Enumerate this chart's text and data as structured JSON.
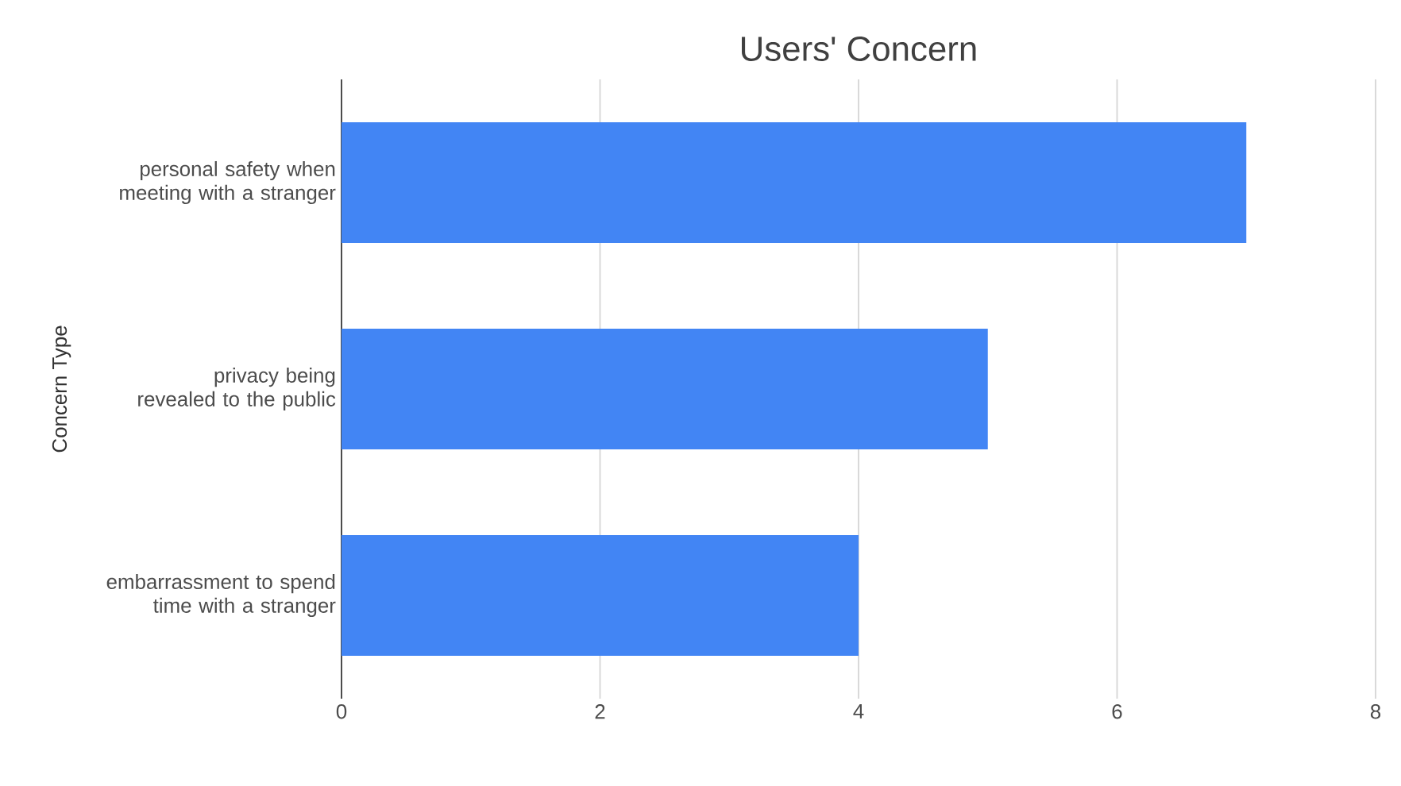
{
  "chart_data": {
    "type": "bar",
    "orientation": "horizontal",
    "title": "Users' Concern",
    "ylabel": "Concern Type",
    "categories": [
      "personal safety when meeting with a stranger",
      "privacy being revealed to the public",
      "embarrassment to spend time with a stranger"
    ],
    "values": [
      7,
      5,
      4
    ],
    "color": "#4285f4",
    "xlim": [
      0,
      8
    ],
    "xticks": [
      0,
      2,
      4,
      6,
      8
    ],
    "grid": "x"
  }
}
